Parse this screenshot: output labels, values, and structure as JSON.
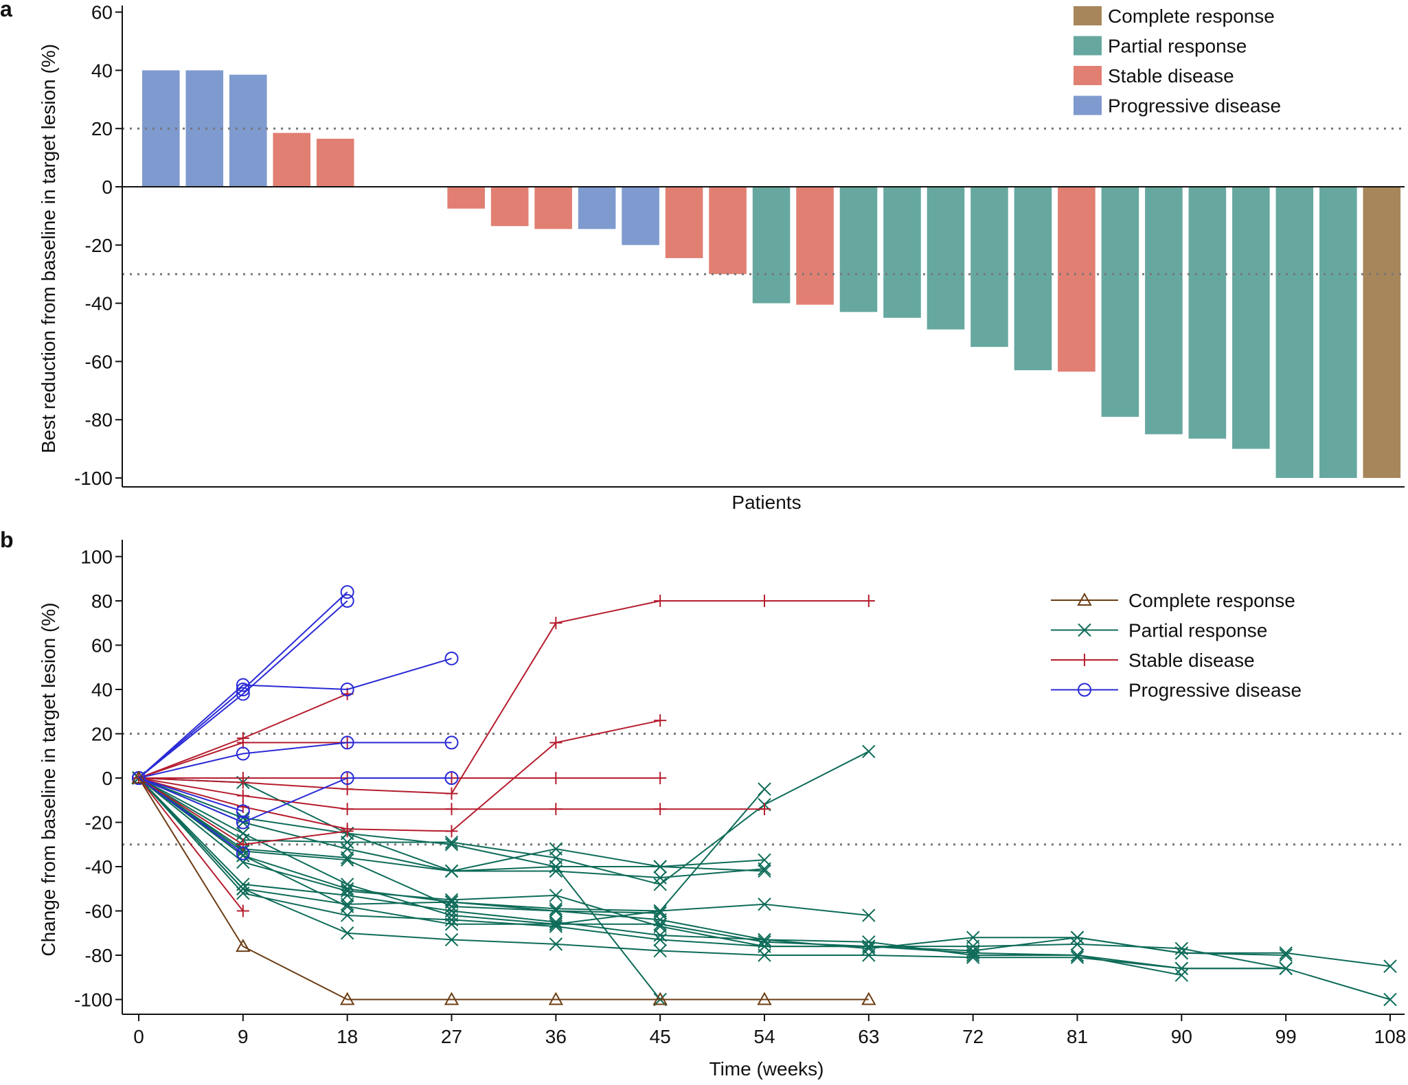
{
  "chart_data": [
    {
      "panel": "a",
      "type": "bar",
      "ylabel": "Best reduction from baseline in target lesion (%)",
      "xlabel": "Patients",
      "ylim": [
        -103,
        62
      ],
      "yticks": [
        60,
        40,
        20,
        0,
        -20,
        -40,
        -60,
        -80,
        -100
      ],
      "reference_lines": [
        20,
        -30
      ],
      "legend_position": "top-right",
      "legend": [
        {
          "key": "CR",
          "label": "Complete response"
        },
        {
          "key": "PR",
          "label": "Partial response"
        },
        {
          "key": "SD",
          "label": "Stable disease"
        },
        {
          "key": "PD",
          "label": "Progressive disease"
        }
      ],
      "colors": {
        "CR": "#a6865a",
        "PR": "#66a8a0",
        "SD": "#e17f73",
        "PD": "#7f9acf"
      },
      "bars": [
        {
          "value": 40,
          "group": "PD"
        },
        {
          "value": 40,
          "group": "PD"
        },
        {
          "value": 38.5,
          "group": "PD"
        },
        {
          "value": 18.5,
          "group": "SD"
        },
        {
          "value": 16.5,
          "group": "SD"
        },
        {
          "value": 0,
          "group": "SD"
        },
        {
          "value": 0,
          "group": "SD"
        },
        {
          "value": -7.5,
          "group": "SD"
        },
        {
          "value": -13.5,
          "group": "SD"
        },
        {
          "value": -14.5,
          "group": "SD"
        },
        {
          "value": -14.5,
          "group": "PD"
        },
        {
          "value": -20,
          "group": "PD"
        },
        {
          "value": -24.5,
          "group": "SD"
        },
        {
          "value": -30,
          "group": "SD"
        },
        {
          "value": -40,
          "group": "PR"
        },
        {
          "value": -40.5,
          "group": "SD"
        },
        {
          "value": -43,
          "group": "PR"
        },
        {
          "value": -45,
          "group": "PR"
        },
        {
          "value": -49,
          "group": "PR"
        },
        {
          "value": -55,
          "group": "PR"
        },
        {
          "value": -63,
          "group": "PR"
        },
        {
          "value": -63.5,
          "group": "SD"
        },
        {
          "value": -79,
          "group": "PR"
        },
        {
          "value": -85,
          "group": "PR"
        },
        {
          "value": -86.5,
          "group": "PR"
        },
        {
          "value": -90,
          "group": "PR"
        },
        {
          "value": -100,
          "group": "PR"
        },
        {
          "value": -100,
          "group": "PR"
        },
        {
          "value": -100,
          "group": "CR"
        }
      ]
    },
    {
      "panel": "b",
      "type": "line",
      "ylabel": "Change from baseline in target lesion (%)",
      "xlabel": "Time (weeks)",
      "xlim": [
        -1,
        109
      ],
      "ylim": [
        -105,
        103
      ],
      "xticks": [
        0,
        9,
        18,
        27,
        36,
        45,
        54,
        63,
        72,
        81,
        90,
        99,
        108
      ],
      "yticks": [
        100,
        80,
        60,
        40,
        20,
        0,
        -20,
        -40,
        -60,
        -80,
        -100
      ],
      "reference_lines": [
        20,
        -30
      ],
      "legend_position": "top-right",
      "legend": [
        {
          "key": "CR",
          "label": "Complete response",
          "marker": "triangle"
        },
        {
          "key": "PR",
          "label": "Partial response",
          "marker": "x"
        },
        {
          "key": "SD",
          "label": "Stable disease",
          "marker": "plus"
        },
        {
          "key": "PD",
          "label": "Progressive disease",
          "marker": "circle"
        }
      ],
      "colors": {
        "CR": "#6b3d14",
        "PR": "#0d6b58",
        "SD": "#b51d2e",
        "PD": "#2a2ad6"
      },
      "series": [
        {
          "group": "CR",
          "points": [
            [
              0,
              0
            ],
            [
              9,
              -76
            ],
            [
              18,
              -100
            ],
            [
              27,
              -100
            ],
            [
              36,
              -100
            ],
            [
              45,
              -100
            ],
            [
              54,
              -100
            ],
            [
              63,
              -100
            ]
          ]
        },
        {
          "group": "PR",
          "points": [
            [
              0,
              0
            ],
            [
              9,
              -2
            ],
            [
              18,
              -25
            ],
            [
              27,
              -42
            ],
            [
              36,
              -32
            ],
            [
              45,
              -40
            ],
            [
              54,
              -37
            ]
          ]
        },
        {
          "group": "PR",
          "points": [
            [
              0,
              0
            ],
            [
              9,
              -18
            ],
            [
              18,
              -25
            ],
            [
              27,
              -30
            ],
            [
              36,
              -40
            ],
            [
              45,
              -100
            ]
          ]
        },
        {
          "group": "PR",
          "points": [
            [
              0,
              0
            ],
            [
              9,
              -20
            ],
            [
              18,
              -32
            ],
            [
              27,
              -42
            ],
            [
              36,
              -40
            ],
            [
              45,
              -40
            ],
            [
              54,
              -42
            ]
          ]
        },
        {
          "group": "PR",
          "points": [
            [
              0,
              0
            ],
            [
              9,
              -25
            ],
            [
              18,
              -48
            ],
            [
              27,
              -62
            ],
            [
              36,
              -66
            ],
            [
              45,
              -60
            ],
            [
              54,
              -5
            ]
          ]
        },
        {
          "group": "PR",
          "points": [
            [
              0,
              0
            ],
            [
              9,
              -28
            ],
            [
              18,
              -29
            ],
            [
              27,
              -29
            ],
            [
              36,
              -36
            ],
            [
              45,
              -48
            ],
            [
              54,
              -12
            ],
            [
              63,
              12
            ]
          ]
        },
        {
          "group": "PR",
          "points": [
            [
              0,
              0
            ],
            [
              9,
              -32
            ],
            [
              18,
              -36
            ],
            [
              27,
              -42
            ],
            [
              36,
              -42
            ],
            [
              45,
              -45
            ],
            [
              54,
              -41
            ]
          ]
        },
        {
          "group": "PR",
          "points": [
            [
              0,
              0
            ],
            [
              9,
              -35
            ],
            [
              18,
              -50
            ],
            [
              27,
              -56
            ],
            [
              36,
              -59
            ],
            [
              45,
              -60
            ],
            [
              54,
              -57
            ],
            [
              63,
              -62
            ]
          ]
        },
        {
          "group": "PR",
          "points": [
            [
              0,
              0
            ],
            [
              9,
              -38
            ],
            [
              18,
              -51
            ],
            [
              27,
              -55
            ],
            [
              36,
              -53
            ],
            [
              45,
              -67
            ],
            [
              54,
              -76
            ],
            [
              63,
              -76
            ],
            [
              72,
              -79
            ],
            [
              81,
              -80
            ],
            [
              90,
              -86
            ],
            [
              99,
              -86
            ]
          ]
        },
        {
          "group": "PR",
          "points": [
            [
              0,
              0
            ],
            [
              9,
              -48
            ],
            [
              18,
              -53
            ],
            [
              27,
              -60
            ],
            [
              36,
              -65
            ],
            [
              45,
              -71
            ],
            [
              54,
              -73
            ],
            [
              63,
              -74
            ],
            [
              72,
              -80
            ],
            [
              81,
              -80
            ],
            [
              90,
              -89
            ]
          ]
        },
        {
          "group": "PR",
          "points": [
            [
              0,
              0
            ],
            [
              9,
              -50
            ],
            [
              18,
              -57
            ],
            [
              27,
              -56
            ],
            [
              36,
              -60
            ],
            [
              45,
              -61
            ]
          ]
        },
        {
          "group": "PR",
          "points": [
            [
              0,
              0
            ],
            [
              9,
              -52
            ],
            [
              18,
              -62
            ],
            [
              27,
              -64
            ],
            [
              36,
              -67
            ],
            [
              45,
              -73
            ],
            [
              54,
              -76
            ],
            [
              63,
              -76
            ],
            [
              72,
              -76
            ],
            [
              81,
              -75
            ],
            [
              90,
              -77
            ],
            [
              99,
              -86
            ],
            [
              108,
              -100
            ]
          ]
        },
        {
          "group": "PR",
          "points": [
            [
              0,
              0
            ],
            [
              9,
              -50
            ],
            [
              18,
              -70
            ],
            [
              27,
              -73
            ],
            [
              36,
              -75
            ],
            [
              45,
              -78
            ],
            [
              54,
              -80
            ],
            [
              63,
              -80
            ],
            [
              72,
              -81
            ],
            [
              81,
              -81
            ],
            [
              90,
              -86
            ],
            [
              99,
              -86
            ]
          ]
        },
        {
          "group": "PR",
          "points": [
            [
              0,
              0
            ],
            [
              9,
              -35
            ],
            [
              18,
              -58
            ],
            [
              27,
              -66
            ],
            [
              36,
              -66
            ],
            [
              45,
              -66
            ],
            [
              54,
              -74
            ],
            [
              63,
              -76
            ],
            [
              72,
              -78
            ],
            [
              81,
              -72
            ],
            [
              90,
              -79
            ],
            [
              99,
              -79
            ],
            [
              108,
              -85
            ]
          ]
        },
        {
          "group": "PR",
          "points": [
            [
              0,
              0
            ],
            [
              9,
              -33
            ],
            [
              18,
              -37
            ],
            [
              27,
              -58
            ],
            [
              36,
              -60
            ],
            [
              45,
              -64
            ],
            [
              54,
              -73
            ],
            [
              63,
              -77
            ],
            [
              72,
              -72
            ],
            [
              81,
              -72
            ],
            [
              90,
              -79
            ],
            [
              99,
              -80
            ]
          ]
        },
        {
          "group": "SD",
          "points": [
            [
              0,
              0
            ],
            [
              9,
              18
            ],
            [
              18,
              38
            ]
          ]
        },
        {
          "group": "SD",
          "points": [
            [
              0,
              0
            ],
            [
              9,
              16
            ],
            [
              18,
              16
            ]
          ]
        },
        {
          "group": "SD",
          "points": [
            [
              0,
              0
            ],
            [
              9,
              0
            ],
            [
              18,
              0
            ],
            [
              27,
              0
            ],
            [
              36,
              0
            ],
            [
              45,
              0
            ]
          ]
        },
        {
          "group": "SD",
          "points": [
            [
              0,
              0
            ],
            [
              9,
              -2
            ],
            [
              18,
              -5
            ],
            [
              27,
              -7
            ],
            [
              36,
              70
            ],
            [
              45,
              80
            ],
            [
              54,
              80
            ],
            [
              63,
              80
            ]
          ]
        },
        {
          "group": "SD",
          "points": [
            [
              0,
              0
            ],
            [
              9,
              -8
            ],
            [
              18,
              -14
            ],
            [
              27,
              -14
            ],
            [
              36,
              -14
            ],
            [
              45,
              -14
            ],
            [
              54,
              -14
            ]
          ]
        },
        {
          "group": "SD",
          "points": [
            [
              0,
              0
            ],
            [
              9,
              -13
            ],
            [
              18,
              -23
            ],
            [
              27,
              -24
            ],
            [
              36,
              16
            ],
            [
              45,
              26
            ]
          ]
        },
        {
          "group": "SD",
          "points": [
            [
              0,
              0
            ],
            [
              9,
              -30
            ],
            [
              18,
              -24
            ]
          ]
        },
        {
          "group": "SD",
          "points": [
            [
              0,
              0
            ],
            [
              9,
              -60
            ]
          ]
        },
        {
          "group": "PD",
          "points": [
            [
              0,
              0
            ],
            [
              9,
              40
            ],
            [
              18,
              84
            ]
          ]
        },
        {
          "group": "PD",
          "points": [
            [
              0,
              0
            ],
            [
              9,
              38
            ],
            [
              18,
              80
            ]
          ]
        },
        {
          "group": "PD",
          "points": [
            [
              0,
              0
            ],
            [
              9,
              42
            ],
            [
              18,
              40
            ],
            [
              27,
              54
            ]
          ]
        },
        {
          "group": "PD",
          "points": [
            [
              0,
              0
            ],
            [
              9,
              11
            ],
            [
              18,
              16
            ],
            [
              27,
              16
            ]
          ]
        },
        {
          "group": "PD",
          "points": [
            [
              0,
              0
            ],
            [
              9,
              -20
            ],
            [
              18,
              0
            ],
            [
              27,
              0
            ]
          ]
        },
        {
          "group": "PD",
          "points": [
            [
              0,
              0
            ],
            [
              9,
              -15
            ]
          ]
        },
        {
          "group": "PD",
          "points": [
            [
              0,
              0
            ],
            [
              9,
              -34
            ]
          ]
        }
      ]
    }
  ]
}
